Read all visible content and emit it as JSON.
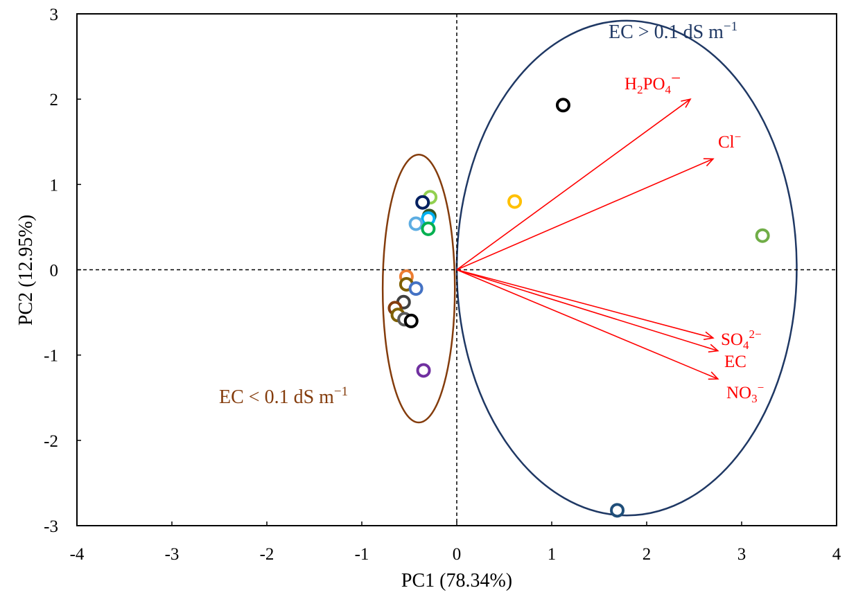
{
  "chart_data": {
    "type": "scatter",
    "title": "",
    "xlabel": "PC1 (78.34%)",
    "ylabel": "PC2 (12.95%)",
    "xlim": [
      -4,
      4
    ],
    "ylim": [
      -3,
      3
    ],
    "xticks": [
      "-4",
      "-3",
      "-2",
      "-1",
      "0",
      "1",
      "2",
      "3",
      "4"
    ],
    "yticks": [
      "-3",
      "-2",
      "-1",
      "0",
      "1",
      "2",
      "3"
    ],
    "grid": false,
    "zero_lines": "dashed",
    "points": [
      {
        "x": 1.12,
        "y": 1.93,
        "color": "#000000"
      },
      {
        "x": 0.61,
        "y": 0.8,
        "color": "#ffc000"
      },
      {
        "x": 3.22,
        "y": 0.4,
        "color": "#70ad47"
      },
      {
        "x": 1.69,
        "y": -2.82,
        "color": "#1f4e79"
      },
      {
        "x": -0.28,
        "y": 0.85,
        "color": "#92d050"
      },
      {
        "x": -0.36,
        "y": 0.79,
        "color": "#002060"
      },
      {
        "x": -0.29,
        "y": 0.63,
        "color": "#375623"
      },
      {
        "x": -0.3,
        "y": 0.6,
        "color": "#00b0f0"
      },
      {
        "x": -0.43,
        "y": 0.54,
        "color": "#5dade2"
      },
      {
        "x": -0.3,
        "y": 0.48,
        "color": "#00b050"
      },
      {
        "x": -0.53,
        "y": -0.08,
        "color": "#ed7d31"
      },
      {
        "x": -0.53,
        "y": -0.17,
        "color": "#7f6000"
      },
      {
        "x": -0.43,
        "y": -0.22,
        "color": "#4472c4"
      },
      {
        "x": -0.56,
        "y": -0.38,
        "color": "#404040"
      },
      {
        "x": -0.65,
        "y": -0.45,
        "color": "#843c0c"
      },
      {
        "x": -0.62,
        "y": -0.53,
        "color": "#7f6000"
      },
      {
        "x": -0.55,
        "y": -0.58,
        "color": "#595959"
      },
      {
        "x": -0.48,
        "y": -0.6,
        "color": "#000000"
      },
      {
        "x": -0.35,
        "y": -1.18,
        "color": "#7030a0"
      }
    ],
    "vectors": [
      {
        "name": "H2PO4−",
        "x": 2.46,
        "y": 2.0
      },
      {
        "name": "Cl−",
        "x": 2.7,
        "y": 1.3
      },
      {
        "name": "SO42−",
        "x": 2.7,
        "y": -0.8
      },
      {
        "name": "EC",
        "x": 2.75,
        "y": -0.95
      },
      {
        "name": "NO3−",
        "x": 2.75,
        "y": -1.28
      }
    ],
    "vector_color": "#ff0000",
    "groups": [
      {
        "label": "EC > 0.1 dS m−1",
        "color": "#1f3864",
        "cx": 1.79,
        "cy": 0.02,
        "rx": 1.79,
        "ry": 2.9
      },
      {
        "label": "EC < 0.1 dS m−1",
        "color": "#843c0c",
        "cx": -0.4,
        "cy": -0.22,
        "rx": 0.38,
        "ry": 1.57
      }
    ]
  }
}
